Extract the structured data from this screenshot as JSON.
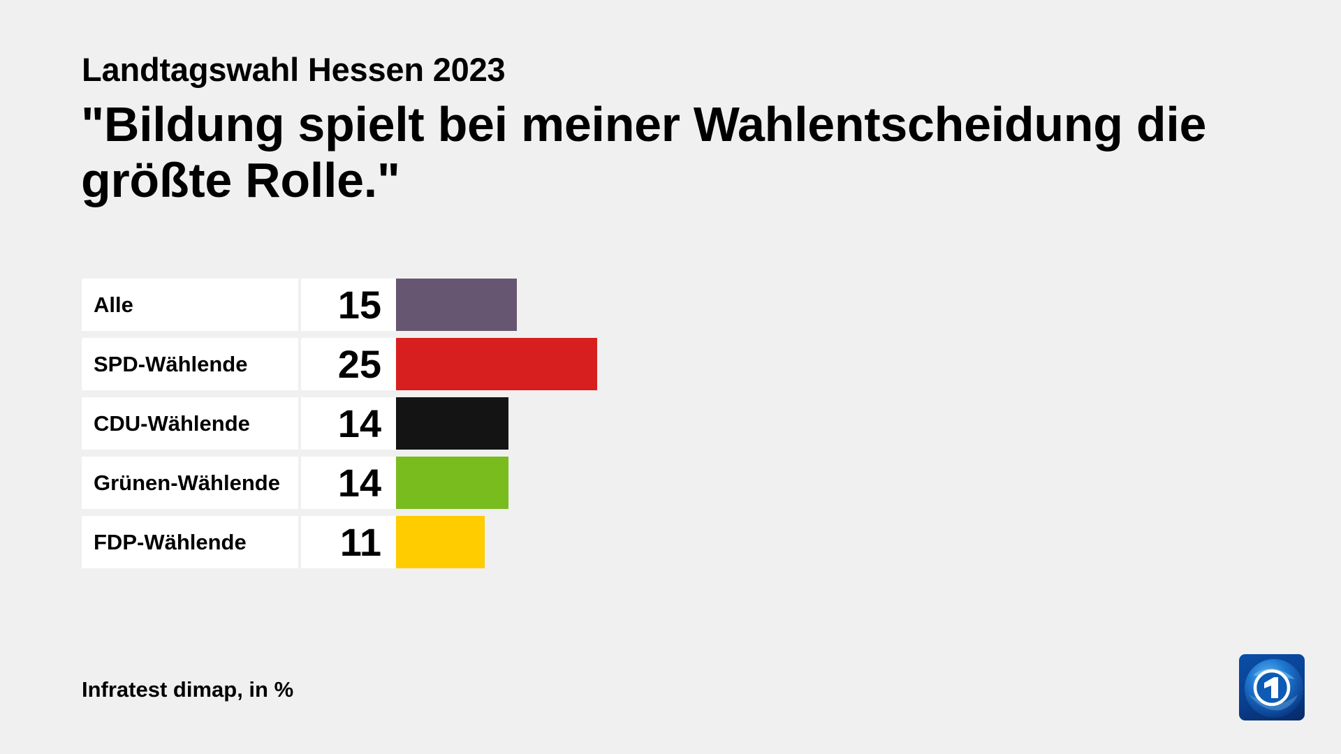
{
  "header": {
    "subtitle": "Landtagswahl Hessen 2023",
    "title": "\"Bildung spielt bei meiner Wahlentscheidung die größte Rolle.\""
  },
  "footer": {
    "source": "Infratest dimap, in %"
  },
  "logo": {
    "icon": "tagesschau-globe-one-icon"
  },
  "rows": [
    {
      "label": "Alle",
      "value": "15",
      "color": "#675671"
    },
    {
      "label": "SPD-Wählende",
      "value": "25",
      "color": "#d71f1f"
    },
    {
      "label": "CDU-Wählende",
      "value": "14",
      "color": "#141414"
    },
    {
      "label": "Grünen-Wählende",
      "value": "14",
      "color": "#79bc1e"
    },
    {
      "label": "FDP-Wählende",
      "value": "11",
      "color": "#ffcc00"
    }
  ],
  "chart_data": {
    "type": "bar",
    "orientation": "horizontal",
    "title": "\"Bildung spielt bei meiner Wahlentscheidung die größte Rolle.\"",
    "subtitle": "Landtagswahl Hessen 2023",
    "categories": [
      "Alle",
      "SPD-Wählende",
      "CDU-Wählende",
      "Grünen-Wählende",
      "FDP-Wählende"
    ],
    "values": [
      15,
      25,
      14,
      14,
      11
    ],
    "colors": [
      "#675671",
      "#d71f1f",
      "#141414",
      "#79bc1e",
      "#ffcc00"
    ],
    "unit": "%",
    "source": "Infratest dimap, in %",
    "xlabel": "",
    "ylabel": "",
    "grid": false,
    "legend": "none",
    "data_labels": true
  }
}
